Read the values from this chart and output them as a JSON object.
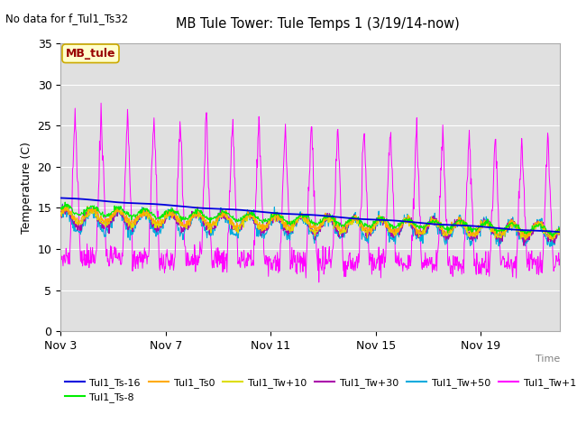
{
  "title": "MB Tule Tower: Tule Temps 1 (3/19/14-now)",
  "no_data_label": "No data for f_Tul1_Ts32",
  "xlabel": "Time",
  "ylabel": "Temperature (C)",
  "ylim": [
    0,
    35
  ],
  "yticks": [
    0,
    5,
    10,
    15,
    20,
    25,
    30,
    35
  ],
  "background_color": "#ffffff",
  "plot_bg_color": "#e0e0e0",
  "legend_label": "MB_tule",
  "legend_bg": "#ffffcc",
  "legend_border": "#ccaa00",
  "series_colors": {
    "Tul1_Ts-16": "#0000dd",
    "Tul1_Ts-8": "#00ee00",
    "Tul1_Ts0": "#ffaa00",
    "Tul1_Tw+10": "#dddd00",
    "Tul1_Tw+30": "#aa00aa",
    "Tul1_Tw+50": "#00aadd",
    "Tul1_Tw+100": "#ff00ff"
  },
  "xtick_labels": [
    "Nov 3",
    "Nov 7",
    "Nov 11",
    "Nov 15",
    "Nov 19"
  ],
  "xtick_positions": [
    0,
    4,
    8,
    12,
    16
  ]
}
